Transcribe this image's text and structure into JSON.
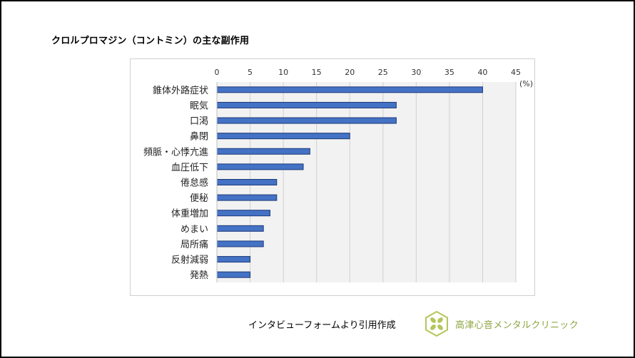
{
  "title": "クロルプロマジン（コントミン）の主な副作用",
  "source_note": "インタビューフォームより引用作成",
  "clinic_name": "高津心音メンタルクリニック",
  "colors": {
    "bar": "#4472c4",
    "bar_border": "#1f3a7a",
    "plot_bg": "#f2f2f2",
    "logo": "#b3c65a"
  },
  "chart_data": {
    "type": "bar",
    "orientation": "horizontal",
    "title": "クロルプロマジン（コントミン）の主な副作用",
    "unit_label": "(%)",
    "xlim": [
      0,
      45
    ],
    "x_ticks": [
      0,
      5,
      10,
      15,
      20,
      25,
      30,
      35,
      40,
      45
    ],
    "categories": [
      "錐体外路症状",
      "眠気",
      "口渇",
      "鼻閉",
      "頻脈・心悸亢進",
      "血圧低下",
      "倦怠感",
      "便秘",
      "体重増加",
      "めまい",
      "局所痛",
      "反射減弱",
      "発熱"
    ],
    "values": [
      40,
      27,
      27,
      20,
      14,
      13,
      9,
      9,
      8,
      7,
      7,
      5,
      5
    ],
    "grid": true,
    "legend": "none"
  }
}
